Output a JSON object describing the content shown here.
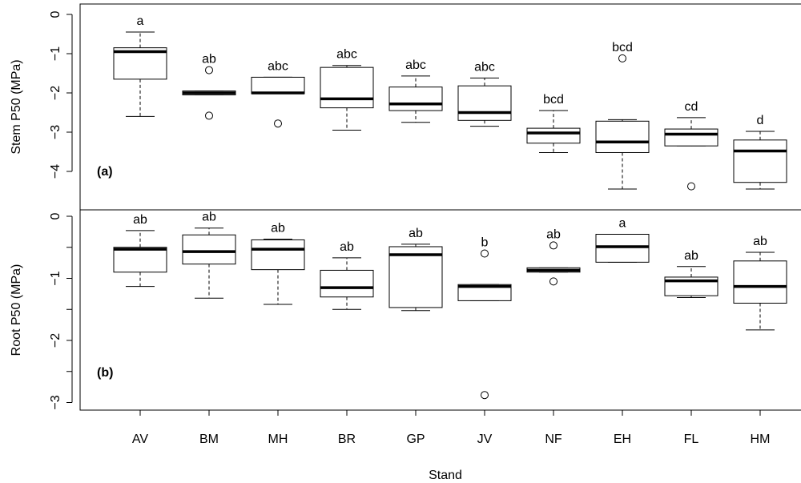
{
  "chart_data": {
    "type": "boxplot",
    "xlabel": "Stand",
    "categories": [
      "AV",
      "BM",
      "MH",
      "BR",
      "GP",
      "JV",
      "NF",
      "EH",
      "FL",
      "HM"
    ],
    "panels": [
      {
        "tag": "(a)",
        "ylabel": "Stem P50 (MPa)",
        "ylim": [
          -4.5,
          0
        ],
        "yticks": [
          0,
          -1,
          -2,
          -3,
          -4
        ],
        "ytick_labels": [
          "0",
          "−1",
          "−2",
          "−3",
          "−4"
        ],
        "grid": false,
        "boxes": [
          {
            "category": "AV",
            "whisker_low": -2.6,
            "q1": -1.65,
            "median": -0.95,
            "q3": -0.85,
            "whisker_high": -0.45,
            "outliers": [],
            "letter": "a"
          },
          {
            "category": "BM",
            "whisker_low": -2.05,
            "q1": -2.05,
            "median": -2.0,
            "q3": -1.95,
            "whisker_high": -1.95,
            "outliers": [
              -1.42,
              -2.58
            ],
            "letter": "ab"
          },
          {
            "category": "MH",
            "whisker_low": -2.02,
            "q1": -2.02,
            "median": -2.0,
            "q3": -1.6,
            "whisker_high": -1.6,
            "outliers": [
              -2.78
            ],
            "letter": "abc"
          },
          {
            "category": "BR",
            "whisker_low": -2.95,
            "q1": -2.38,
            "median": -2.15,
            "q3": -1.35,
            "whisker_high": -1.3,
            "outliers": [],
            "letter": "abc"
          },
          {
            "category": "GP",
            "whisker_low": -2.75,
            "q1": -2.45,
            "median": -2.28,
            "q3": -1.85,
            "whisker_high": -1.57,
            "outliers": [],
            "letter": "abc"
          },
          {
            "category": "JV",
            "whisker_low": -2.85,
            "q1": -2.7,
            "median": -2.5,
            "q3": -1.82,
            "whisker_high": -1.62,
            "outliers": [],
            "letter": "abc"
          },
          {
            "category": "NF",
            "whisker_low": -3.52,
            "q1": -3.28,
            "median": -3.02,
            "q3": -2.9,
            "whisker_high": -2.45,
            "outliers": [],
            "letter": "bcd"
          },
          {
            "category": "EH",
            "whisker_low": -4.45,
            "q1": -3.52,
            "median": -3.25,
            "q3": -2.72,
            "whisker_high": -2.68,
            "outliers": [
              -1.12
            ],
            "letter": "bcd"
          },
          {
            "category": "FL",
            "whisker_low": -3.35,
            "q1": -3.35,
            "median": -3.05,
            "q3": -2.92,
            "whisker_high": -2.63,
            "outliers": [
              -4.38
            ],
            "letter": "cd"
          },
          {
            "category": "HM",
            "whisker_low": -4.45,
            "q1": -4.28,
            "median": -3.48,
            "q3": -3.2,
            "whisker_high": -2.98,
            "outliers": [],
            "letter": "d"
          }
        ]
      },
      {
        "tag": "(b)",
        "ylabel": "Root P50 (MPa)",
        "ylim": [
          -3.1,
          0.1
        ],
        "yticks": [
          0,
          -0.5,
          -1,
          -1.5,
          -2,
          -2.5,
          -3
        ],
        "ytick_labels": [
          "0",
          "",
          "−1",
          "",
          "−2",
          "",
          "−3"
        ],
        "grid": false,
        "boxes": [
          {
            "category": "AV",
            "whisker_low": -1.13,
            "q1": -0.9,
            "median": -0.53,
            "q3": -0.5,
            "whisker_high": -0.23,
            "outliers": [],
            "letter": "ab"
          },
          {
            "category": "BM",
            "whisker_low": -1.32,
            "q1": -0.77,
            "median": -0.57,
            "q3": -0.3,
            "whisker_high": -0.19,
            "outliers": [],
            "letter": "ab"
          },
          {
            "category": "MH",
            "whisker_low": -1.42,
            "q1": -0.86,
            "median": -0.53,
            "q3": -0.38,
            "whisker_high": -0.37,
            "outliers": [],
            "letter": "ab"
          },
          {
            "category": "BR",
            "whisker_low": -1.5,
            "q1": -1.3,
            "median": -1.15,
            "q3": -0.87,
            "whisker_high": -0.67,
            "outliers": [],
            "letter": "ab"
          },
          {
            "category": "GP",
            "whisker_low": -1.52,
            "q1": -1.47,
            "median": -0.62,
            "q3": -0.49,
            "whisker_high": -0.45,
            "outliers": [],
            "letter": "ab"
          },
          {
            "category": "JV",
            "whisker_low": -1.36,
            "q1": -1.36,
            "median": -1.13,
            "q3": -1.1,
            "whisker_high": -1.1,
            "outliers": [
              -0.6,
              -2.88
            ],
            "letter": "b"
          },
          {
            "category": "NF",
            "whisker_low": -0.9,
            "q1": -0.9,
            "median": -0.87,
            "q3": -0.83,
            "whisker_high": -0.83,
            "outliers": [
              -0.47,
              -1.05
            ],
            "letter": "ab"
          },
          {
            "category": "EH",
            "whisker_low": -0.74,
            "q1": -0.74,
            "median": -0.49,
            "q3": -0.29,
            "whisker_high": -0.29,
            "outliers": [],
            "letter": "a"
          },
          {
            "category": "FL",
            "whisker_low": -1.31,
            "q1": -1.28,
            "median": -1.04,
            "q3": -0.98,
            "whisker_high": -0.81,
            "outliers": [],
            "letter": "ab"
          },
          {
            "category": "HM",
            "whisker_low": -1.83,
            "q1": -1.4,
            "median": -1.13,
            "q3": -0.72,
            "whisker_high": -0.58,
            "outliers": [],
            "letter": "ab"
          }
        ]
      }
    ]
  }
}
